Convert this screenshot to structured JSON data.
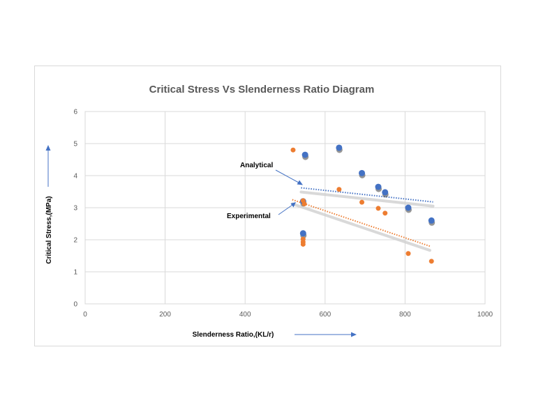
{
  "chart_data": {
    "type": "scatter",
    "title": "Critical Stress Vs Slenderness Ratio Diagram",
    "xlabel": "Slenderness Ratio,(KL/r)",
    "ylabel": "Critical Stress,(MPa)",
    "xlim": [
      0,
      1000
    ],
    "ylim": [
      0,
      6
    ],
    "x_ticks": [
      0,
      200,
      400,
      600,
      800,
      1000
    ],
    "y_ticks": [
      0,
      1,
      2,
      3,
      4,
      5,
      6
    ],
    "grid": true,
    "series": [
      {
        "name": "Analytical",
        "color": "#4472c4",
        "points": [
          {
            "x": 545,
            "y": 3.2
          },
          {
            "x": 545,
            "y": 2.2
          },
          {
            "x": 550,
            "y": 4.65
          },
          {
            "x": 635,
            "y": 4.87
          },
          {
            "x": 692,
            "y": 4.08
          },
          {
            "x": 733,
            "y": 3.65
          },
          {
            "x": 750,
            "y": 3.48
          },
          {
            "x": 808,
            "y": 3.0
          },
          {
            "x": 866,
            "y": 2.6
          }
        ],
        "trendline": {
          "x": [
            540,
            870
          ],
          "y": [
            3.62,
            3.18
          ]
        }
      },
      {
        "name": "Experimental",
        "color": "#ed7d31",
        "points": [
          {
            "x": 520,
            "y": 4.8
          },
          {
            "x": 545,
            "y": 3.22
          },
          {
            "x": 548,
            "y": 3.12
          },
          {
            "x": 545,
            "y": 2.02
          },
          {
            "x": 545,
            "y": 1.93
          },
          {
            "x": 545,
            "y": 1.86
          },
          {
            "x": 635,
            "y": 3.57
          },
          {
            "x": 692,
            "y": 3.17
          },
          {
            "x": 733,
            "y": 2.98
          },
          {
            "x": 750,
            "y": 2.83
          },
          {
            "x": 808,
            "y": 1.57
          },
          {
            "x": 866,
            "y": 1.33
          }
        ],
        "trendline": {
          "x": [
            518,
            862
          ],
          "y": [
            3.25,
            1.8
          ]
        }
      }
    ],
    "annotations": [
      {
        "text": "Analytical",
        "target_series": "Analytical"
      },
      {
        "text": "Experimental",
        "target_series": "Experimental"
      }
    ]
  }
}
